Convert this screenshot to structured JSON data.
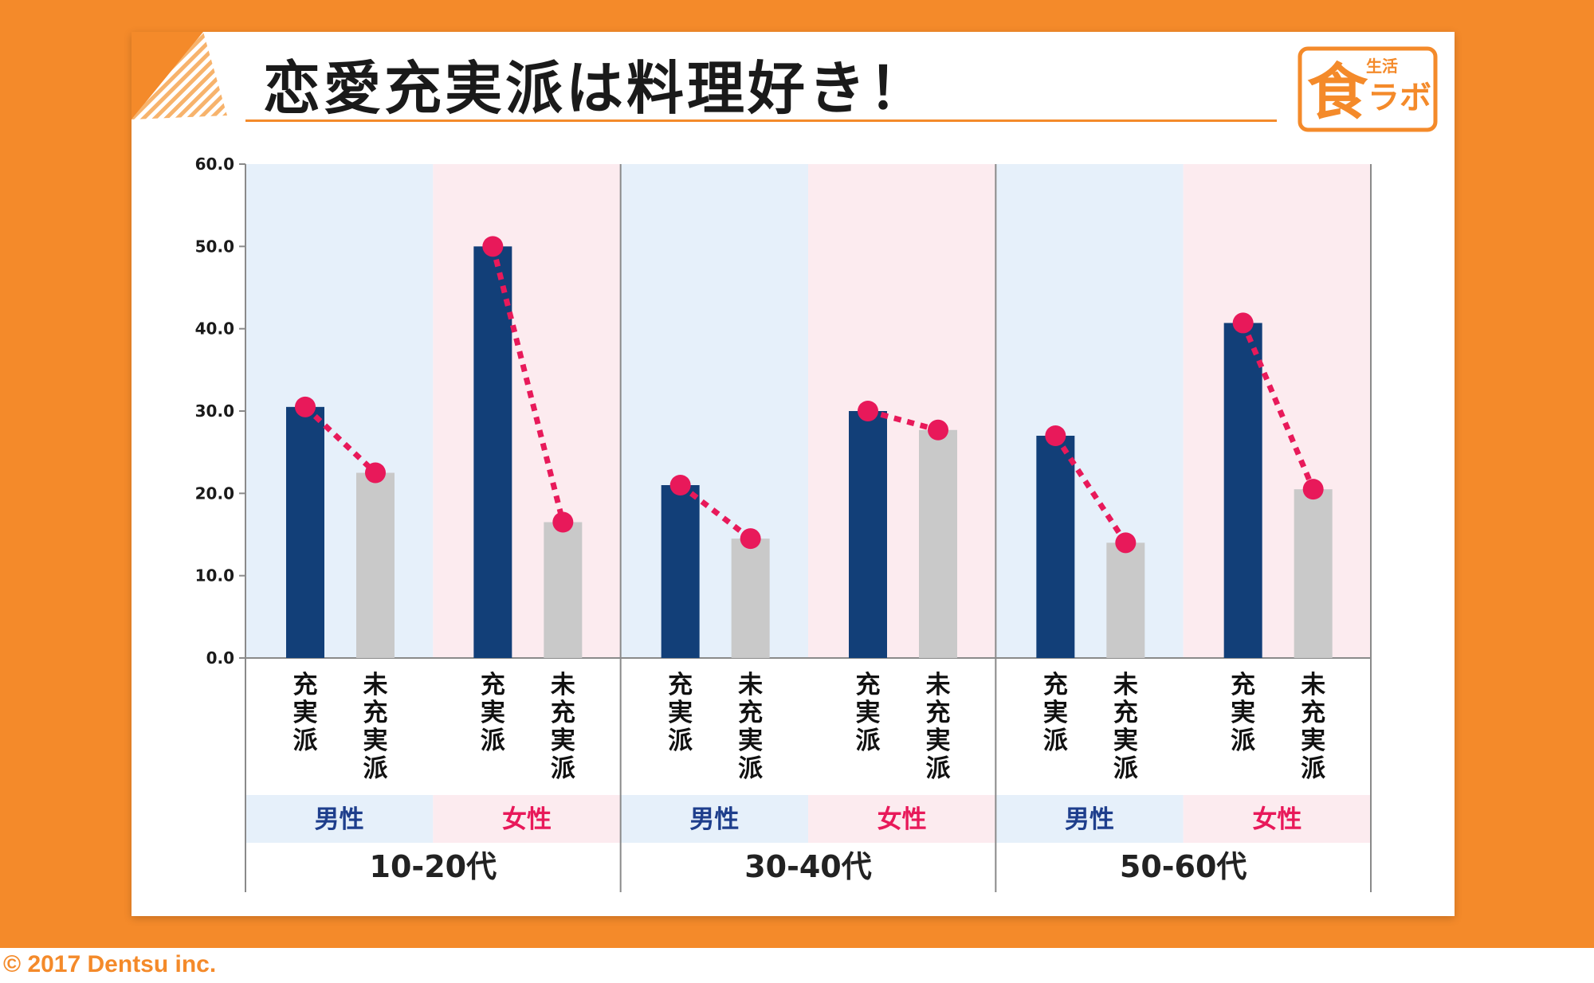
{
  "header": {
    "title": "恋愛充実派は料理好き！"
  },
  "logo": {
    "small": "生活",
    "big": "食",
    "side": "ラボ"
  },
  "footer": {
    "copyright": "© 2017 Dentsu inc."
  },
  "colors": {
    "background": "#F48A2A",
    "accent": "#F48A2A",
    "bar_primary": "#123F78",
    "bar_secondary": "#C9C9C9",
    "line": "#E8195A",
    "male_band": "#E6F0FA",
    "female_band": "#FCEBEF",
    "male_text": "#1E3E8C",
    "female_text": "#E8195A"
  },
  "chart_data": {
    "type": "bar",
    "title": "恋愛充実派は料理好き！",
    "ylim": [
      0,
      60
    ],
    "yticks": [
      "0.0",
      "10.0",
      "20.0",
      "30.0",
      "40.0",
      "50.0",
      "60.0"
    ],
    "grid": false,
    "group_labels": [
      "10-20代",
      "30-40代",
      "50-60代"
    ],
    "gender_labels": [
      "男性",
      "女性"
    ],
    "category_labels": [
      "充実派",
      "未充実派"
    ],
    "values": [
      [
        [
          30.5,
          22.5
        ],
        [
          50.0,
          16.5
        ]
      ],
      [
        [
          21.0,
          14.5
        ],
        [
          30.0,
          27.7
        ]
      ],
      [
        [
          27.0,
          14.0
        ],
        [
          40.7,
          20.5
        ]
      ]
    ]
  }
}
